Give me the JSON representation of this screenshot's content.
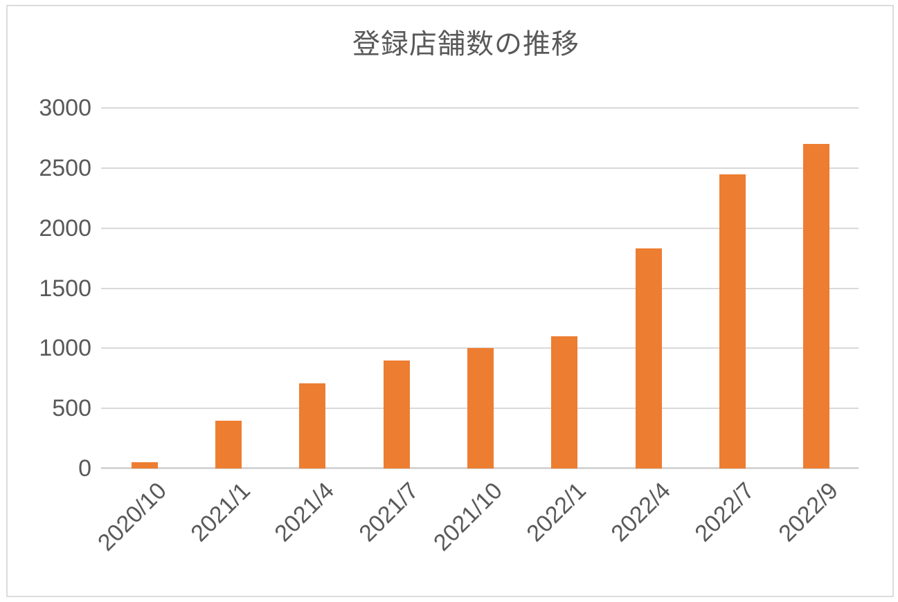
{
  "chart_data": {
    "type": "bar",
    "title": "登録店舗数の推移",
    "categories": [
      "2020/10",
      "2021/1",
      "2021/4",
      "2021/7",
      "2021/10",
      "2022/1",
      "2022/4",
      "2022/7",
      "2022/9"
    ],
    "values": [
      50,
      400,
      710,
      900,
      1000,
      1100,
      1830,
      2450,
      2700
    ],
    "xlabel": "",
    "ylabel": "",
    "ylim": [
      0,
      3000
    ],
    "yticks": [
      0,
      500,
      1000,
      1500,
      2000,
      2500,
      3000
    ],
    "grid": true,
    "legend": false,
    "colors": {
      "bar": "#ed7d31",
      "text": "#595959",
      "gridline": "#d9d9d9",
      "axis_line": "#d4d4d4",
      "frame_border": "#dcdcdc"
    }
  }
}
